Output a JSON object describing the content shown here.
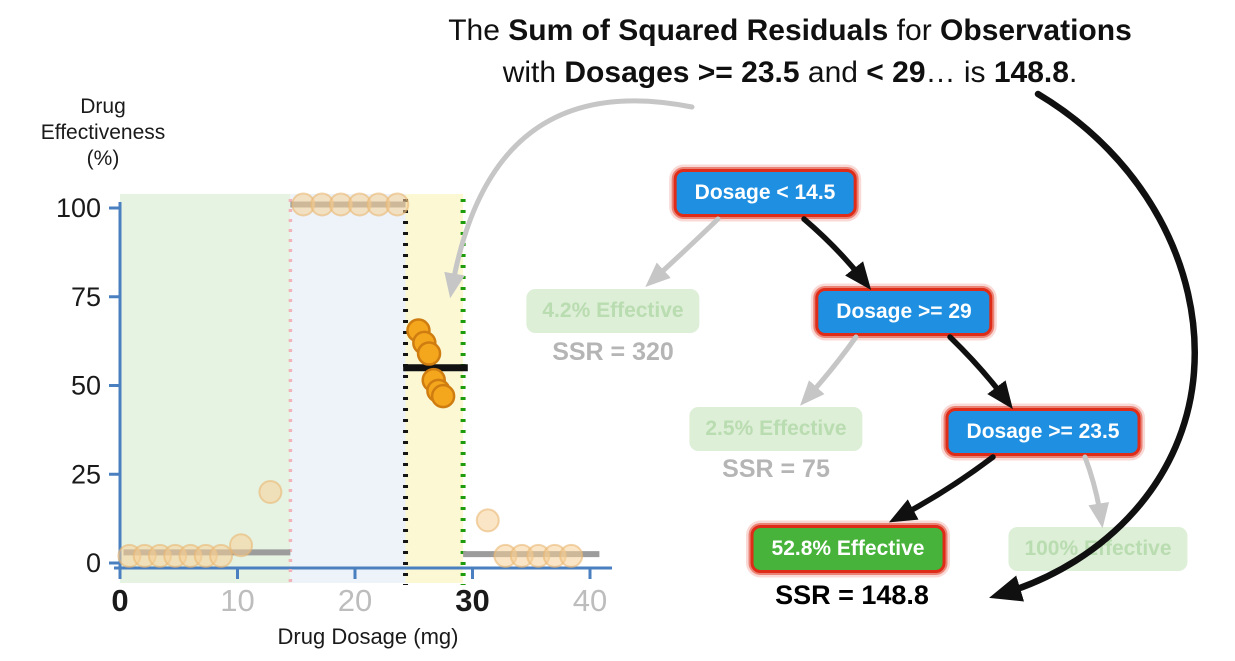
{
  "title": {
    "line1": [
      {
        "t": "The ",
        "b": false
      },
      {
        "t": "Sum of Squared Residuals",
        "b": true
      },
      {
        "t": " for ",
        "b": false
      },
      {
        "t": "Observations",
        "b": true
      }
    ],
    "line2": [
      {
        "t": "with ",
        "b": false
      },
      {
        "t": "Dosages >= 23.5",
        "b": true
      },
      {
        "t": " and ",
        "b": false
      },
      {
        "t": "< 29",
        "b": true
      },
      {
        "t": "… is ",
        "b": false
      },
      {
        "t": "148.8",
        "b": true
      },
      {
        "t": ".",
        "b": false
      }
    ]
  },
  "chart_data": {
    "type": "scatter",
    "xlabel": "Drug Dosage (mg)",
    "ylabel": "Drug Effectiveness (%)",
    "ylabel_lines": [
      "Drug",
      "Effectiveness",
      "(%)"
    ],
    "xlim": [
      0,
      41.5
    ],
    "ylim": [
      0,
      105
    ],
    "x_ticks": [
      {
        "v": 0,
        "label": "0",
        "emph": true
      },
      {
        "v": 10,
        "label": "10",
        "emph": false
      },
      {
        "v": 20,
        "label": "20",
        "emph": false
      },
      {
        "v": 30,
        "label": "30",
        "emph": true
      },
      {
        "v": 40,
        "label": "40",
        "emph": false
      }
    ],
    "y_ticks": [
      {
        "v": 0,
        "label": "0"
      },
      {
        "v": 25,
        "label": "25"
      },
      {
        "v": 50,
        "label": "50"
      },
      {
        "v": 75,
        "label": "75"
      },
      {
        "v": 100,
        "label": "100"
      }
    ],
    "regions": [
      {
        "name": "region-below-14.5",
        "x0": 0,
        "x1": 14.5,
        "color": "#e6f3e2"
      },
      {
        "name": "region-14.5-to-23.5",
        "x0": 14.5,
        "x1": 24.3,
        "color": "#edf3f8"
      },
      {
        "name": "region-23.5-to-29-highlight",
        "x0": 24.3,
        "x1": 29.2,
        "color": "#fbf8d3"
      }
    ],
    "vlines": [
      {
        "name": "threshold-14.5",
        "x": 14.5,
        "color": "#f2b4bb",
        "width": 3.5,
        "dash": "3 7"
      },
      {
        "name": "threshold-23.5",
        "x": 24.3,
        "color": "#141414",
        "width": 5,
        "dash": "3 8"
      },
      {
        "name": "threshold-29",
        "x": 29.2,
        "color": "#1f9c0c",
        "width": 5,
        "dash": "3 8"
      }
    ],
    "mean_lines": [
      {
        "name": "mean-left-3pct",
        "x0": 0.3,
        "x1": 14.5,
        "y": 3,
        "color": "#9c9c9c",
        "width": 6
      },
      {
        "name": "mean-mid-100pct",
        "x0": 14.5,
        "x1": 24.3,
        "y": 101,
        "color": "#9c9c9c",
        "width": 6
      },
      {
        "name": "mean-right-2.5pct",
        "x0": 29.2,
        "x1": 40.8,
        "y": 2.5,
        "color": "#9c9c9c",
        "width": 6
      },
      {
        "name": "mean-highlight-52.8pct",
        "x0": 24.1,
        "x1": 29.6,
        "y": 55,
        "color": "#111111",
        "width": 7
      }
    ],
    "points": {
      "faint": [
        [
          0.8,
          2
        ],
        [
          2.1,
          2
        ],
        [
          3.4,
          2
        ],
        [
          4.7,
          2
        ],
        [
          6.0,
          2
        ],
        [
          7.3,
          2
        ],
        [
          8.6,
          2
        ],
        [
          10.3,
          5
        ],
        [
          12.8,
          20
        ],
        [
          15.6,
          101
        ],
        [
          17.2,
          101
        ],
        [
          18.8,
          101
        ],
        [
          20.4,
          101
        ],
        [
          22.0,
          101
        ],
        [
          23.6,
          101
        ],
        [
          31.3,
          12
        ],
        [
          32.8,
          2
        ],
        [
          34.2,
          2
        ],
        [
          35.6,
          2
        ],
        [
          37.0,
          2
        ],
        [
          38.4,
          2
        ]
      ],
      "vivid": [
        [
          25.4,
          65.5
        ],
        [
          25.9,
          62
        ],
        [
          26.3,
          59
        ],
        [
          26.7,
          51.5
        ],
        [
          27.1,
          48.5
        ],
        [
          27.5,
          47
        ]
      ]
    }
  },
  "tree": {
    "root": "Dosage < 14.5",
    "leaf_42": "4.2% Effective",
    "ssr_320": "SSR = 320",
    "node_29": "Dosage >= 29",
    "leaf_25": "2.5% Effective",
    "ssr_75": "SSR = 75",
    "node_235": "Dosage >= 23.5",
    "leaf_528": "52.8% Effective",
    "ssr_1488": "SSR = 148.8",
    "leaf_100": "100% Effective"
  },
  "colors": {
    "node_blue": "#1e8fe1",
    "node_green": "#47b33b",
    "node_faded_bg": "#ddefd7",
    "node_faded_text": "#b9dcb0",
    "scribble_red": "#de2c18",
    "ssr_gray": "#b5b5b5",
    "axis_blue": "#4a7fc0",
    "point_orange": "#f4a61d",
    "highlight_yellow": "#fbf8d3",
    "arrow_gray": "#c6c6c6",
    "arrow_black": "#101010"
  }
}
